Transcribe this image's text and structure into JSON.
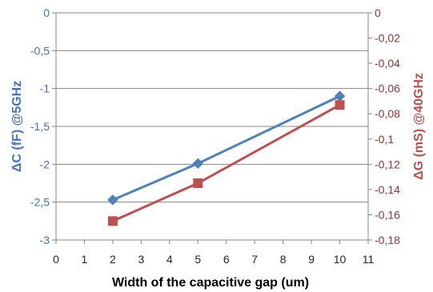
{
  "chart_data": {
    "type": "line",
    "xlabel": "Width of the capacitive gap (um)",
    "xlim": [
      0,
      11
    ],
    "x_ticks": [
      "0",
      "1",
      "2",
      "3",
      "4",
      "5",
      "6",
      "7",
      "8",
      "9",
      "10",
      "11"
    ],
    "y_left": {
      "label": "ΔC (fF) @5GHz",
      "lim": [
        -3,
        0
      ],
      "ticks": [
        "0",
        "-0,5",
        "-1",
        "-1,5",
        "-2",
        "-2,5",
        "-3"
      ],
      "color": "#4472c4"
    },
    "y_right": {
      "label": "ΔG (mS) @40GHz",
      "lim": [
        -0.18,
        0
      ],
      "ticks": [
        "0",
        "-0,02",
        "-0,04",
        "-0,06",
        "-0,08",
        "-0,1",
        "-0,12",
        "-0,14",
        "-0,16",
        "-0,18"
      ],
      "color": "#943634"
    },
    "grid": true,
    "series": [
      {
        "axis": "left",
        "color": "#4f81bd",
        "marker": "diamond",
        "x": [
          2,
          5,
          10
        ],
        "y": [
          -2.47,
          -1.99,
          -1.1
        ]
      },
      {
        "axis": "right",
        "color": "#c0504d",
        "marker": "square",
        "x": [
          2,
          5,
          10
        ],
        "y": [
          -0.165,
          -0.135,
          -0.073
        ]
      }
    ]
  }
}
